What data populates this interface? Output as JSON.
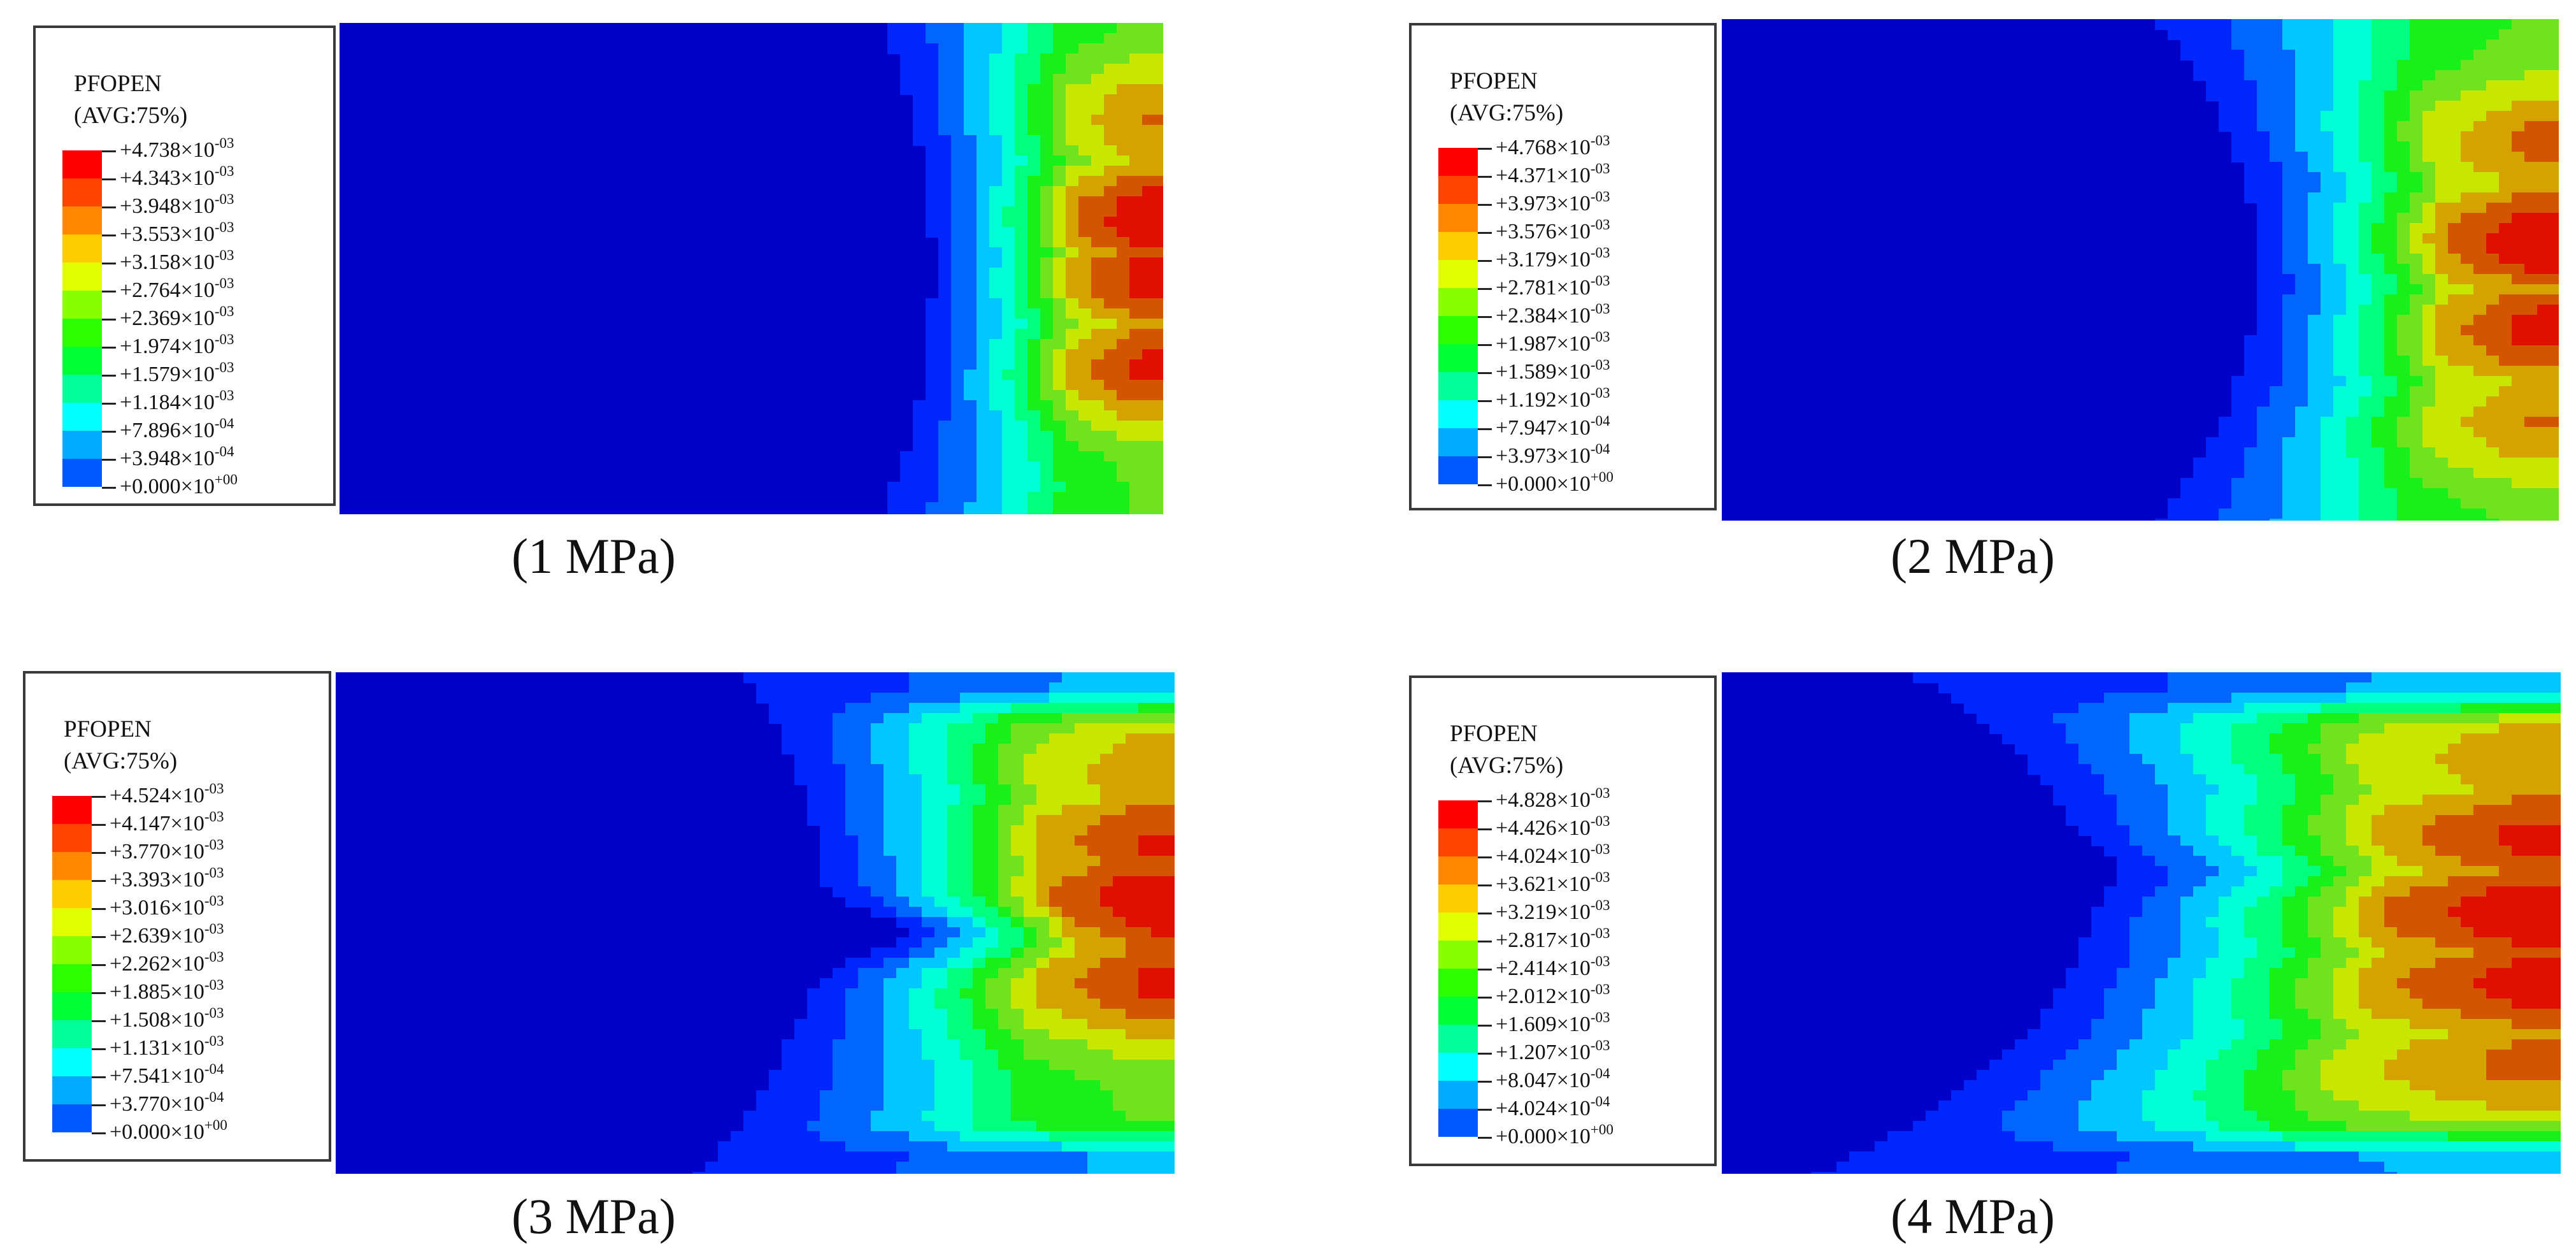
{
  "legend_colors": [
    "#0000ff",
    "#0059ff",
    "#00aaff",
    "#00ffff",
    "#00ff99",
    "#00ff33",
    "#2bff00",
    "#88ff00",
    "#e0ff00",
    "#ffcc00",
    "#ff8800",
    "#ff4400",
    "#ff0000"
  ],
  "field_colors": [
    "#0000c8",
    "#0026ff",
    "#0066ff",
    "#00c8ff",
    "#00ffd4",
    "#00ff7f",
    "#19ef19",
    "#6ee31e",
    "#c7e600",
    "#d4a300",
    "#d45500",
    "#e01000"
  ],
  "panels": [
    {
      "caption": "(1 MPa)",
      "legend": {
        "variable": "PFOPEN",
        "avg": "(AVG:75%)",
        "levels": [
          {
            "mantissa": "+4.738×10",
            "exp": "-03"
          },
          {
            "mantissa": "+4.343×10",
            "exp": "-03"
          },
          {
            "mantissa": "+3.948×10",
            "exp": "-03"
          },
          {
            "mantissa": "+3.553×10",
            "exp": "-03"
          },
          {
            "mantissa": "+3.158×10",
            "exp": "-03"
          },
          {
            "mantissa": "+2.764×10",
            "exp": "-03"
          },
          {
            "mantissa": "+2.369×10",
            "exp": "-03"
          },
          {
            "mantissa": "+1.974×10",
            "exp": "-03"
          },
          {
            "mantissa": "+1.579×10",
            "exp": "-03"
          },
          {
            "mantissa": "+1.184×10",
            "exp": "-03"
          },
          {
            "mantissa": "+7.896×10",
            "exp": "-04"
          },
          {
            "mantissa": "+3.948×10",
            "exp": "-04"
          },
          {
            "mantissa": "+0.000×10",
            "exp": "+00"
          }
        ]
      }
    },
    {
      "caption": "(2 MPa)",
      "legend": {
        "variable": "PFOPEN",
        "avg": "(AVG:75%)",
        "levels": [
          {
            "mantissa": "+4.768×10",
            "exp": "-03"
          },
          {
            "mantissa": "+4.371×10",
            "exp": "-03"
          },
          {
            "mantissa": "+3.973×10",
            "exp": "-03"
          },
          {
            "mantissa": "+3.576×10",
            "exp": "-03"
          },
          {
            "mantissa": "+3.179×10",
            "exp": "-03"
          },
          {
            "mantissa": "+2.781×10",
            "exp": "-03"
          },
          {
            "mantissa": "+2.384×10",
            "exp": "-03"
          },
          {
            "mantissa": "+1.987×10",
            "exp": "-03"
          },
          {
            "mantissa": "+1.589×10",
            "exp": "-03"
          },
          {
            "mantissa": "+1.192×10",
            "exp": "-03"
          },
          {
            "mantissa": "+7.947×10",
            "exp": "-04"
          },
          {
            "mantissa": "+3.973×10",
            "exp": "-04"
          },
          {
            "mantissa": "+0.000×10",
            "exp": "+00"
          }
        ]
      }
    },
    {
      "caption": "(3 MPa)",
      "legend": {
        "variable": "PFOPEN",
        "avg": "(AVG:75%)",
        "levels": [
          {
            "mantissa": "+4.524×10",
            "exp": "-03"
          },
          {
            "mantissa": "+4.147×10",
            "exp": "-03"
          },
          {
            "mantissa": "+3.770×10",
            "exp": "-03"
          },
          {
            "mantissa": "+3.393×10",
            "exp": "-03"
          },
          {
            "mantissa": "+3.016×10",
            "exp": "-03"
          },
          {
            "mantissa": "+2.639×10",
            "exp": "-03"
          },
          {
            "mantissa": "+2.262×10",
            "exp": "-03"
          },
          {
            "mantissa": "+1.885×10",
            "exp": "-03"
          },
          {
            "mantissa": "+1.508×10",
            "exp": "-03"
          },
          {
            "mantissa": "+1.131×10",
            "exp": "-03"
          },
          {
            "mantissa": "+7.541×10",
            "exp": "-04"
          },
          {
            "mantissa": "+3.770×10",
            "exp": "-04"
          },
          {
            "mantissa": "+0.000×10",
            "exp": "+00"
          }
        ]
      }
    },
    {
      "caption": "(4 MPa)",
      "legend": {
        "variable": "PFOPEN",
        "avg": "(AVG:75%)",
        "levels": [
          {
            "mantissa": "+4.828×10",
            "exp": "-03"
          },
          {
            "mantissa": "+4.426×10",
            "exp": "-03"
          },
          {
            "mantissa": "+4.024×10",
            "exp": "-03"
          },
          {
            "mantissa": "+3.621×10",
            "exp": "-03"
          },
          {
            "mantissa": "+3.219×10",
            "exp": "-03"
          },
          {
            "mantissa": "+2.817×10",
            "exp": "-03"
          },
          {
            "mantissa": "+2.414×10",
            "exp": "-03"
          },
          {
            "mantissa": "+2.012×10",
            "exp": "-03"
          },
          {
            "mantissa": "+1.609×10",
            "exp": "-03"
          },
          {
            "mantissa": "+1.207×10",
            "exp": "-03"
          },
          {
            "mantissa": "+8.047×10",
            "exp": "-04"
          },
          {
            "mantissa": "+4.024×10",
            "exp": "-04"
          },
          {
            "mantissa": "+0.000×10",
            "exp": "+00"
          }
        ]
      }
    }
  ]
}
